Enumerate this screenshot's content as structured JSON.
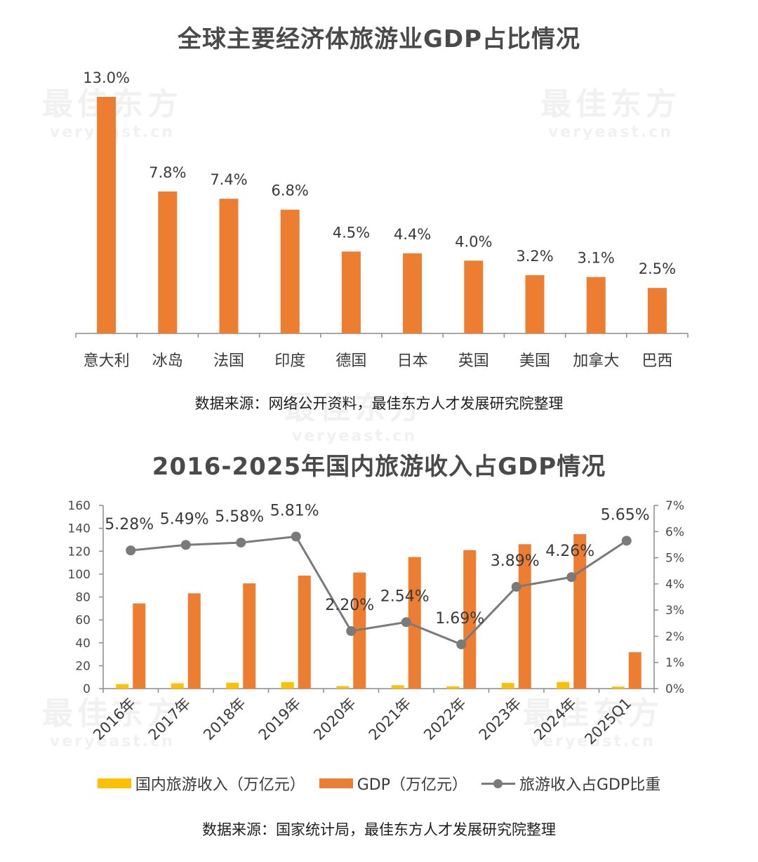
{
  "chart_data": [
    {
      "type": "bar",
      "title": "全球主要经济体旅游业GDP占比情况",
      "categories": [
        "意大利",
        "冰岛",
        "法国",
        "印度",
        "德国",
        "日本",
        "英国",
        "美国",
        "加拿大",
        "巴西"
      ],
      "values": [
        13.0,
        7.8,
        7.4,
        6.8,
        4.5,
        4.4,
        4.0,
        3.2,
        3.1,
        2.5
      ],
      "data_labels": [
        "13.0%",
        "7.8%",
        "7.4%",
        "6.8%",
        "4.5%",
        "4.4%",
        "4.0%",
        "3.2%",
        "3.1%",
        "2.5%"
      ],
      "ylim": [
        0,
        13.0
      ],
      "grid": false,
      "source": "数据来源：网络公开资料，最佳东方人才发展研究院整理",
      "colors": {
        "bar": "#ED7D31"
      }
    },
    {
      "type": "bar",
      "title": "2016-2025年国内旅游收入占GDP情况",
      "categories": [
        "2016年",
        "2017年",
        "2018年",
        "2019年",
        "2020年",
        "2021年",
        "2022年",
        "2023年",
        "2024年",
        "2025Q1"
      ],
      "series": [
        {
          "name": "国内旅游收入（万亿元）",
          "type": "bar",
          "axis": "left",
          "color": "#FFC000",
          "values": [
            3.9,
            4.6,
            5.1,
            5.7,
            2.2,
            2.9,
            2.0,
            4.9,
            5.8,
            1.8
          ]
        },
        {
          "name": "GDP（万亿元）",
          "type": "bar",
          "axis": "left",
          "color": "#ED7D31",
          "values": [
            74.4,
            83.2,
            91.9,
            98.7,
            101.4,
            114.9,
            121.0,
            126.1,
            134.9,
            31.8
          ]
        },
        {
          "name": "旅游收入占GDP比重",
          "type": "line",
          "axis": "right",
          "color": "#7A7A7A",
          "values": [
            5.28,
            5.49,
            5.58,
            5.81,
            2.2,
            2.54,
            1.69,
            3.89,
            4.26,
            5.65
          ],
          "labels": [
            "5.28%",
            "5.49%",
            "5.58%",
            "5.81%",
            "2.20%",
            "2.54%",
            "1.69%",
            "3.89%",
            "4.26%",
            "5.65%"
          ]
        }
      ],
      "y_left": {
        "ylim": [
          0,
          160
        ],
        "ticks": [
          "0",
          "20",
          "40",
          "60",
          "80",
          "100",
          "120",
          "140",
          "160"
        ]
      },
      "y_right": {
        "ylim": [
          0,
          7
        ],
        "ticks": [
          "0%",
          "1%",
          "2%",
          "3%",
          "4%",
          "5%",
          "6%",
          "7%"
        ]
      },
      "legend_position": "bottom",
      "grid": false,
      "source": "数据来源：国家统计局，最佳东方人才发展研究院整理"
    }
  ],
  "watermark": {
    "text": "最佳东方",
    "sub": "veryeast.cn"
  }
}
